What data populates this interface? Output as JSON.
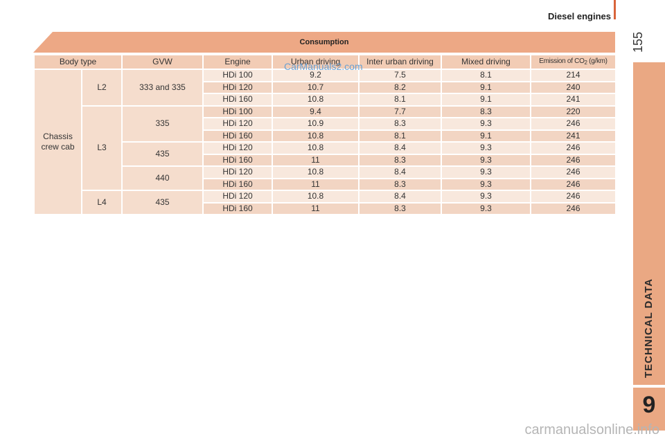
{
  "header": {
    "section_title": "Diesel engines",
    "page_number": "155"
  },
  "sidebar": {
    "label": "TECHNICAL DATA",
    "chapter_number": "9"
  },
  "table": {
    "title": "Consumption",
    "columns": [
      "Body type",
      "GVW",
      "Engine",
      "Urban driving",
      "Inter urban driving",
      "Mixed driving"
    ],
    "co2_header": {
      "prefix": "Emission of CO",
      "sub": "2",
      "suffix": " (g/km)"
    },
    "body_type": "Chassis crew cab",
    "lengths": [
      "L2",
      "L3",
      "L4"
    ],
    "gvw": {
      "l2": "333 and 335",
      "l3_a": "335",
      "l3_b": "435",
      "l3_c": "440",
      "l4": "435"
    },
    "rows": [
      {
        "engine": "HDi 100",
        "urban": "9.2",
        "inter": "7.5",
        "mixed": "8.1",
        "co2": "214"
      },
      {
        "engine": "HDi 120",
        "urban": "10.7",
        "inter": "8.2",
        "mixed": "9.1",
        "co2": "240"
      },
      {
        "engine": "HDi 160",
        "urban": "10.8",
        "inter": "8.1",
        "mixed": "9.1",
        "co2": "241"
      },
      {
        "engine": "HDi 100",
        "urban": "9.4",
        "inter": "7.7",
        "mixed": "8.3",
        "co2": "220"
      },
      {
        "engine": "HDi 120",
        "urban": "10.9",
        "inter": "8.3",
        "mixed": "9.3",
        "co2": "246"
      },
      {
        "engine": "HDi 160",
        "urban": "10.8",
        "inter": "8.1",
        "mixed": "9.1",
        "co2": "241"
      },
      {
        "engine": "HDi 120",
        "urban": "10.8",
        "inter": "8.4",
        "mixed": "9.3",
        "co2": "246"
      },
      {
        "engine": "HDi 160",
        "urban": "11",
        "inter": "8.3",
        "mixed": "9.3",
        "co2": "246"
      },
      {
        "engine": "HDi 120",
        "urban": "10.8",
        "inter": "8.4",
        "mixed": "9.3",
        "co2": "246"
      },
      {
        "engine": "HDi 160",
        "urban": "11",
        "inter": "8.3",
        "mixed": "9.3",
        "co2": "246"
      },
      {
        "engine": "HDi 120",
        "urban": "10.8",
        "inter": "8.4",
        "mixed": "9.3",
        "co2": "246"
      },
      {
        "engine": "HDi 160",
        "urban": "11",
        "inter": "8.3",
        "mixed": "9.3",
        "co2": "246"
      }
    ]
  },
  "watermarks": {
    "top": "CarManuals2.com",
    "bottom": "carmanualsonline.info"
  },
  "colors": {
    "accent": "#eaa883",
    "header_band": "#eda885",
    "row_light": "#f8e8dd",
    "row_dark": "#f2d5c3"
  }
}
